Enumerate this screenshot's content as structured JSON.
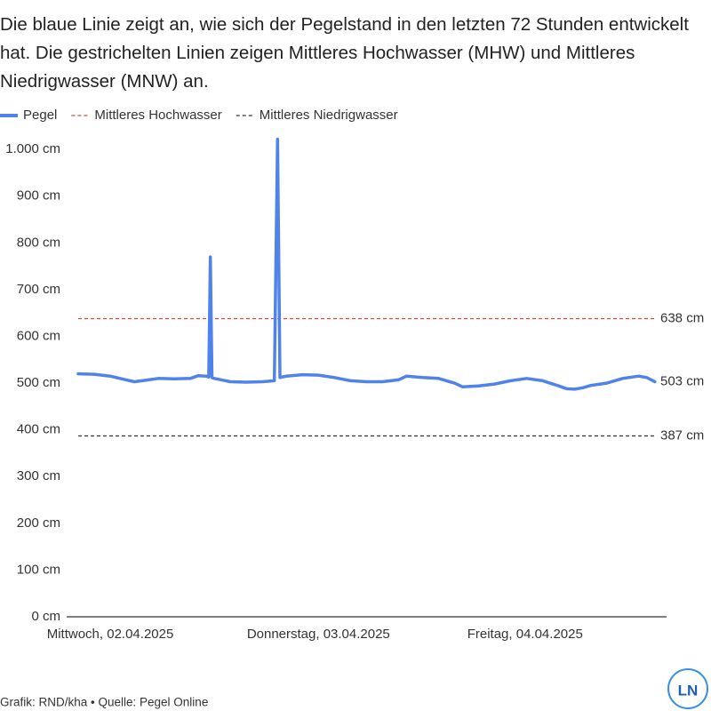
{
  "chart_data": {
    "type": "line",
    "title": "Die blaue Linie zeigt an, wie sich der Pegelstand in den letzten 72 Stunden entwickelt hat. Die gestrichelten Linien zeigen Mittleres Hochwasser (MHW) und Mittleres Niedrigwasser (MNW) an.",
    "x": [
      0,
      2,
      4,
      6,
      7,
      8,
      10,
      12,
      14,
      15,
      16,
      16.3,
      16.5,
      16.7,
      17,
      19,
      21,
      23,
      24.5,
      24.9,
      25.2,
      26,
      28,
      30,
      32,
      34,
      36,
      38,
      40,
      41,
      43,
      45,
      47,
      48,
      50,
      52,
      54,
      56,
      58,
      60,
      61,
      62,
      63,
      64,
      66,
      68,
      70,
      71,
      72
    ],
    "series": [
      {
        "name": "Pegel",
        "color": "#5082ec",
        "values": [
          520,
          519,
          515,
          507,
          503,
          505,
          510,
          509,
          510,
          516,
          515,
          513,
          770,
          512,
          510,
          503,
          502,
          503,
          505,
          1022,
          512,
          515,
          518,
          517,
          512,
          505,
          503,
          503,
          507,
          515,
          512,
          510,
          500,
          492,
          494,
          498,
          505,
          510,
          505,
          494,
          488,
          487,
          490,
          495,
          500,
          510,
          515,
          512,
          503
        ],
        "end_label": "503 cm"
      }
    ],
    "reference_lines": [
      {
        "name": "Mittleres Hochwasser",
        "color": "#e0453a",
        "value": 638,
        "label": "638 cm"
      },
      {
        "name": "Mittleres Niedrigwasser",
        "color": "#333333",
        "value": 387,
        "label": "387 cm"
      }
    ],
    "xlim": [
      -1.44,
      73.47
    ],
    "xticks": [
      {
        "value": 4,
        "label": "Mittwoch, 02.04.2025"
      },
      {
        "value": 30,
        "label": "Donnerstag, 03.04.2025"
      },
      {
        "value": 55.8,
        "label": "Freitag, 04.04.2025"
      }
    ],
    "ylim": [
      0,
      1025
    ],
    "yticks": [
      {
        "value": 0,
        "label": "0 cm"
      },
      {
        "value": 100,
        "label": "100 cm"
      },
      {
        "value": 200,
        "label": "200 cm"
      },
      {
        "value": 300,
        "label": "300 cm"
      },
      {
        "value": 400,
        "label": "400 cm"
      },
      {
        "value": 500,
        "label": "500 cm"
      },
      {
        "value": 600,
        "label": "600 cm"
      },
      {
        "value": 700,
        "label": "700 cm"
      },
      {
        "value": 800,
        "label": "800 cm"
      },
      {
        "value": 900,
        "label": "900 cm"
      },
      {
        "value": 1000,
        "label": "1.000 cm"
      }
    ],
    "source": "Grafik: RND/kha • Quelle: Pegel Online",
    "logo": "LN"
  }
}
